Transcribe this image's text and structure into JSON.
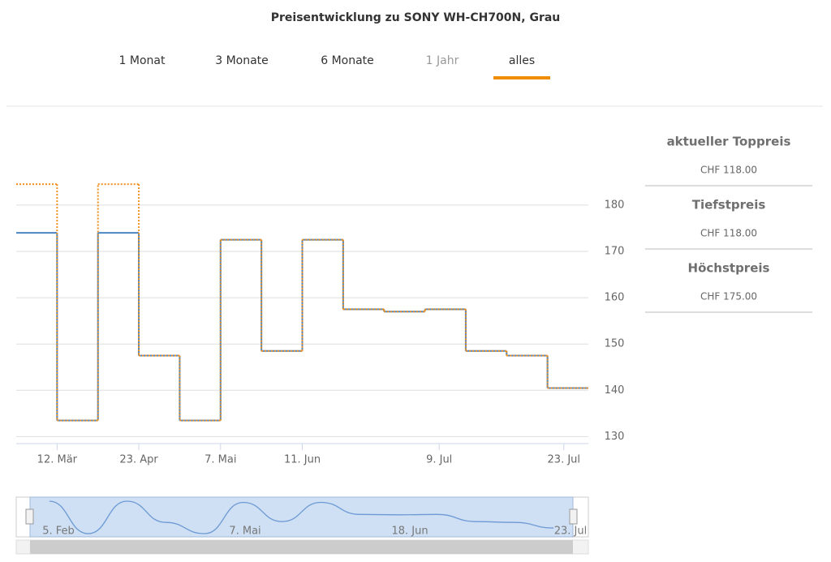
{
  "chart_data": {
    "type": "line",
    "step": true,
    "title": "Preisentwicklung zu SONY WH-CH700N, Grau",
    "x": [
      0,
      1,
      2,
      3,
      4,
      5,
      6,
      7,
      8,
      9,
      10,
      11,
      12,
      13
    ],
    "xlim": [
      0,
      14
    ],
    "xticks": [
      {
        "value": 1,
        "label": "12. Mär"
      },
      {
        "value": 3,
        "label": "23. Apr"
      },
      {
        "value": 5,
        "label": "7. Mai"
      },
      {
        "value": 7,
        "label": "11. Jun"
      },
      {
        "value": 10.35,
        "label": "9. Jul"
      },
      {
        "value": 13.4,
        "label": "23. Jul"
      }
    ],
    "ylim": [
      128.5,
      191
    ],
    "yticks": [
      130,
      140,
      150,
      160,
      170,
      180
    ],
    "grid": true,
    "series": [
      {
        "color": "#4a86c5",
        "values": [
          174,
          133.5,
          174,
          147.5,
          133.5,
          172.5,
          148.5,
          172.5,
          157.5,
          157,
          157.5,
          148.5,
          147.5,
          140.5
        ]
      },
      {
        "color": "#ef8f1c",
        "dash": "dotted",
        "values": [
          184.5,
          133.5,
          184.5,
          147.5,
          133.5,
          172.5,
          148.5,
          172.5,
          157.5,
          157,
          157.5,
          148.5,
          147.5,
          140.5
        ]
      }
    ],
    "navigator_labels": [
      "5. Feb",
      "7. Mai",
      "18. Jun",
      "23. Jul"
    ]
  },
  "tabs": [
    "1 Monat",
    "3 Monate",
    "6 Monate",
    "1 Jahr",
    "alles"
  ],
  "summary": [
    {
      "label": "aktueller Toppreis",
      "value": "CHF 118.00"
    },
    {
      "label": "Tiefstpreis",
      "value": "CHF 118.00"
    },
    {
      "label": "Höchstpreis",
      "value": "CHF 175.00"
    }
  ]
}
